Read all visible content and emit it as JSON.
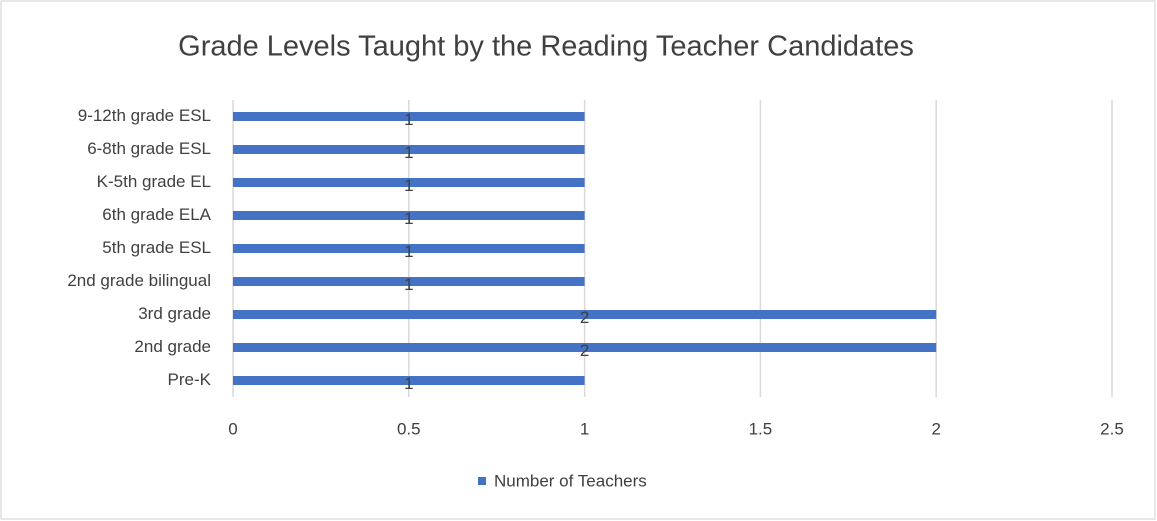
{
  "chart_data": {
    "type": "bar",
    "orientation": "horizontal",
    "title": "Grade Levels Taught by the Reading Teacher Candidates",
    "categories": [
      "9-12th grade ESL",
      "6-8th grade ESL",
      "K-5th grade EL",
      "6th grade ELA",
      "5th grade ESL",
      "2nd grade bilingual",
      "3rd grade",
      "2nd grade",
      "Pre-K"
    ],
    "series": [
      {
        "name": "Number of Teachers",
        "color": "#4472c4",
        "values": [
          1,
          1,
          1,
          1,
          1,
          1,
          2,
          2,
          1
        ]
      }
    ],
    "xlim": [
      0,
      2.5
    ],
    "xticks": [
      0,
      0.5,
      1,
      1.5,
      2,
      2.5
    ],
    "grid": true,
    "legend": "bottom"
  }
}
